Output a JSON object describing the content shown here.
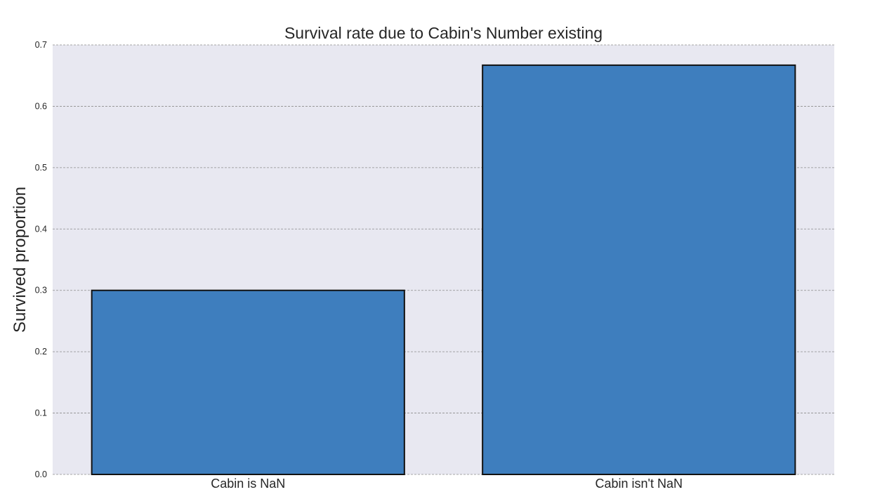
{
  "chart_data": {
    "type": "bar",
    "title": "Survival rate due to Cabin's Number existing",
    "xlabel": "",
    "ylabel": "Survived proportion",
    "categories": [
      "Cabin is NaN",
      "Cabin isn't NaN"
    ],
    "values": [
      0.3,
      0.667
    ],
    "ylim": [
      0,
      0.7
    ],
    "yticks": [
      "0.0",
      "0.1",
      "0.2",
      "0.3",
      "0.4",
      "0.5",
      "0.6",
      "0.7"
    ],
    "grid": true,
    "legend": "none",
    "colors": {
      "bar": "#3e7ebe",
      "bar_edge": "#111111",
      "plot_background": "#e8e8f1",
      "grid": "#8c8c8c"
    }
  }
}
